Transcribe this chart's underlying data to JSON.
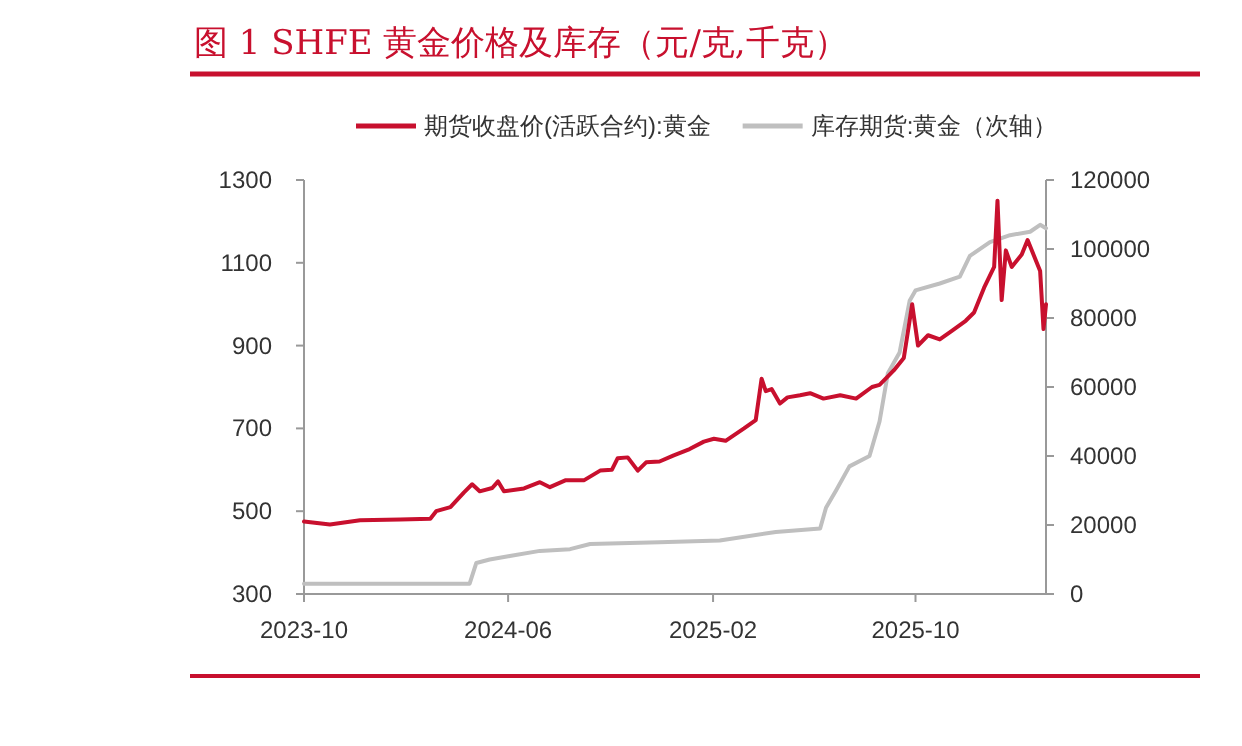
{
  "chart_data": {
    "type": "line",
    "title": "图 1 SHFE 黄金价格及库存（元/克,千克）",
    "legend": "top",
    "grid": false,
    "marker": "none",
    "line_style": "solid",
    "xlim": [
      "2023-10-01",
      "2026-03-06"
    ],
    "xticks": [
      "2023-10",
      "2024-06",
      "2025-02",
      "2025-10"
    ],
    "ylim": [
      300,
      1300
    ],
    "yticks": [
      300,
      500,
      700,
      900,
      1100,
      1300
    ],
    "y2lim": [
      0,
      120000
    ],
    "y2ticks": [
      0,
      20000,
      40000,
      60000,
      80000,
      100000,
      120000
    ],
    "series": [
      {
        "name": "期货收盘价(活跃合约):黄金",
        "color": "#c8102e",
        "x": [
          "2023-10-01",
          "2023-11-01",
          "2023-12-07",
          "2024-01-24",
          "2024-02-29",
          "2024-03-07",
          "2024-03-24",
          "2024-04-09",
          "2024-04-19",
          "2024-04-28",
          "2024-05-13",
          "2024-05-20",
          "2024-05-27",
          "2024-06-20",
          "2024-07-09",
          "2024-07-21",
          "2024-08-09",
          "2024-08-31",
          "2024-09-19",
          "2024-10-03",
          "2024-10-10",
          "2024-10-22",
          "2024-11-03",
          "2024-11-13",
          "2024-11-29",
          "2024-12-16",
          "2025-01-04",
          "2025-01-21",
          "2025-02-02",
          "2025-02-16",
          "2025-03-10",
          "2025-03-24",
          "2025-03-31",
          "2025-04-05",
          "2025-04-12",
          "2025-04-22",
          "2025-05-01",
          "2025-05-16",
          "2025-05-28",
          "2025-06-13",
          "2025-07-03",
          "2025-07-22",
          "2025-08-10",
          "2025-08-19",
          "2025-09-05",
          "2025-09-17",
          "2025-09-27",
          "2025-10-04",
          "2025-10-16",
          "2025-10-30",
          "2025-11-13",
          "2025-11-30",
          "2025-12-10",
          "2025-12-22",
          "2026-01-03",
          "2026-01-07",
          "2026-01-12",
          "2026-01-17",
          "2026-01-24",
          "2026-02-05",
          "2026-02-12",
          "2026-02-19",
          "2026-02-27",
          "2026-03-03",
          "2026-03-06"
        ],
        "values": [
          475,
          468,
          478,
          480,
          482,
          500,
          510,
          545,
          565,
          548,
          556,
          572,
          548,
          555,
          570,
          558,
          575,
          575,
          598,
          600,
          628,
          630,
          598,
          618,
          620,
          635,
          650,
          668,
          675,
          670,
          700,
          720,
          820,
          790,
          795,
          760,
          775,
          780,
          785,
          772,
          780,
          772,
          800,
          805,
          840,
          870,
          1000,
          900,
          925,
          915,
          935,
          960,
          980,
          1040,
          1090,
          1250,
          1010,
          1130,
          1090,
          1120,
          1155,
          1120,
          1080,
          940,
          1000
        ]
      },
      {
        "name": "库存期货:黄金（次轴）",
        "color": "#bfbfbf",
        "axis": "y2",
        "x": [
          "2023-10-01",
          "2024-04-16",
          "2024-04-24",
          "2024-05-10",
          "2024-06-03",
          "2024-07-09",
          "2024-08-14",
          "2024-09-07",
          "2024-11-29",
          "2025-02-09",
          "2025-04-17",
          "2025-06-09",
          "2025-06-16",
          "2025-06-28",
          "2025-07-14",
          "2025-08-07",
          "2025-08-19",
          "2025-08-29",
          "2025-09-12",
          "2025-09-24",
          "2025-10-01",
          "2025-10-30",
          "2025-11-23",
          "2025-12-05",
          "2025-12-29",
          "2026-01-22",
          "2026-02-15",
          "2026-02-27",
          "2026-03-06"
        ],
        "values": [
          3000,
          3000,
          9000,
          10000,
          11000,
          12500,
          13000,
          14500,
          15000,
          15500,
          18000,
          19000,
          25000,
          30000,
          37000,
          40000,
          50000,
          64000,
          70000,
          85000,
          88000,
          90000,
          92000,
          98000,
          102000,
          104000,
          105000,
          107000,
          106000
        ]
      }
    ]
  }
}
